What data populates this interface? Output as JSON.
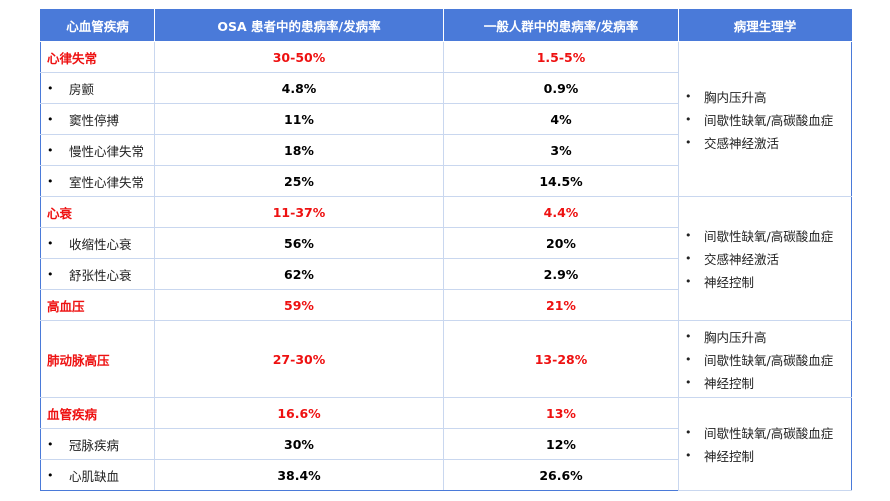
{
  "header": {
    "col1": "心血管疾病",
    "col2": "OSA 患者中的患病率/发病率",
    "col3": "一般人群中的患病率/发病率",
    "col4": "病理生理学"
  },
  "groups": [
    {
      "category": {
        "name": "心律失常",
        "osa": "30-50%",
        "general": "1.5-5%"
      },
      "items": [
        {
          "name": "房颤",
          "osa": "4.8%",
          "general": "0.9%"
        },
        {
          "name": "窦性停搏",
          "osa": "11%",
          "general": "4%"
        },
        {
          "name": "慢性心律失常",
          "osa": "18%",
          "general": "3%"
        },
        {
          "name": "室性心律失常",
          "osa": "25%",
          "general": "14.5%"
        }
      ],
      "pathophysiology": [
        "胸内压升高",
        "间歇性缺氧/高碳酸血症",
        "交感神经激活"
      ]
    },
    {
      "category": {
        "name": "心衰",
        "osa": "11-37%",
        "general": "4.4%"
      },
      "items": [
        {
          "name": "收缩性心衰",
          "osa": "56%",
          "general": "20%"
        },
        {
          "name": "舒张性心衰",
          "osa": "62%",
          "general": "2.9%"
        }
      ],
      "pathophysiology": [
        "间歇性缺氧/高碳酸血症",
        "交感神经激活",
        "神经控制"
      ]
    },
    {
      "category": {
        "name": "高血压",
        "osa": "59%",
        "general": "21%"
      },
      "items": []
    },
    {
      "category": {
        "name": "肺动脉高压",
        "osa": "27-30%",
        "general": "13-28%"
      },
      "items": [],
      "pathophysiology": [
        "胸内压升高",
        "间歇性缺氧/高碳酸血症",
        "神经控制"
      ]
    },
    {
      "category": {
        "name": "血管疾病",
        "osa": "16.6%",
        "general": "13%"
      },
      "items": [
        {
          "name": "冠脉疾病",
          "osa": "30%",
          "general": "12%"
        },
        {
          "name": "心肌缺血",
          "osa": "38.4%",
          "general": "26.6%"
        }
      ],
      "pathophysiology": [
        "间歇性缺氧/高碳酸血症",
        "神经控制"
      ]
    }
  ],
  "bullet_symbol": "•",
  "colors": {
    "header_bg": "#4a7ad9",
    "category_text": "#ee1111",
    "grid": "#c9d7ef"
  }
}
